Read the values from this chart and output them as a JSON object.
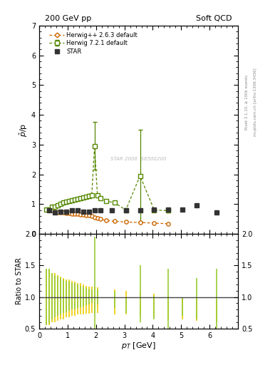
{
  "title_left": "200 GeV pp",
  "title_right": "Soft QCD",
  "ylabel_main": "$\\bar{p}$/p",
  "ylabel_ratio": "Ratio to STAR",
  "xlabel": "$p_T$ [GeV]",
  "watermark": "STAR 2006  S6500200",
  "right_label_top": "Rivet 3.1.10, ≥ 100k events",
  "right_label_bot": "mcplots.cern.ch [arXiv:1306.3436]",
  "ylim_main": [
    0,
    7
  ],
  "ylim_ratio": [
    0.5,
    2.0
  ],
  "xlim": [
    0,
    7
  ],
  "star_x": [
    0.35,
    0.55,
    0.75,
    0.95,
    1.15,
    1.35,
    1.55,
    1.75,
    1.95,
    2.15,
    2.55,
    3.05,
    3.55,
    4.05,
    4.55,
    5.05,
    5.55,
    6.25
  ],
  "star_y": [
    0.78,
    0.72,
    0.75,
    0.75,
    0.78,
    0.78,
    0.75,
    0.75,
    0.78,
    0.78,
    0.78,
    0.78,
    0.8,
    0.82,
    0.82,
    0.82,
    0.95,
    0.72
  ],
  "star_yerr": [
    0.04,
    0.03,
    0.03,
    0.03,
    0.03,
    0.03,
    0.03,
    0.03,
    0.03,
    0.03,
    0.03,
    0.03,
    0.03,
    0.03,
    0.03,
    0.04,
    0.05,
    0.06
  ],
  "herwig263_x": [
    0.25,
    0.35,
    0.45,
    0.55,
    0.65,
    0.75,
    0.85,
    0.95,
    1.05,
    1.15,
    1.25,
    1.35,
    1.45,
    1.55,
    1.65,
    1.75,
    1.85,
    1.95,
    2.05,
    2.15,
    2.35,
    2.65,
    3.05,
    3.55,
    4.05,
    4.55
  ],
  "herwig263_y": [
    0.82,
    0.8,
    0.78,
    0.75,
    0.73,
    0.73,
    0.72,
    0.7,
    0.7,
    0.68,
    0.67,
    0.66,
    0.65,
    0.64,
    0.63,
    0.62,
    0.6,
    0.55,
    0.52,
    0.5,
    0.45,
    0.42,
    0.4,
    0.38,
    0.36,
    0.34
  ],
  "herwig263_yerr": [
    0.02,
    0.02,
    0.02,
    0.02,
    0.02,
    0.02,
    0.02,
    0.02,
    0.02,
    0.02,
    0.02,
    0.02,
    0.02,
    0.02,
    0.02,
    0.02,
    0.02,
    0.02,
    0.02,
    0.02,
    0.02,
    0.02,
    0.02,
    0.02,
    0.02,
    0.02
  ],
  "herwig721_x": [
    0.25,
    0.35,
    0.45,
    0.55,
    0.65,
    0.75,
    0.85,
    0.95,
    1.05,
    1.15,
    1.25,
    1.35,
    1.45,
    1.55,
    1.65,
    1.75,
    1.85,
    1.95,
    2.05,
    2.15,
    2.35,
    2.65,
    3.05,
    3.55,
    4.05,
    4.55
  ],
  "herwig721_y": [
    0.82,
    0.82,
    0.9,
    0.92,
    0.95,
    1.0,
    1.05,
    1.08,
    1.1,
    1.12,
    1.15,
    1.18,
    1.2,
    1.22,
    1.25,
    1.28,
    1.3,
    2.95,
    1.3,
    1.2,
    1.1,
    1.05,
    0.8,
    1.95,
    0.8,
    0.78
  ],
  "herwig721_yerr": [
    0.05,
    0.05,
    0.05,
    0.05,
    0.05,
    0.05,
    0.05,
    0.05,
    0.05,
    0.05,
    0.05,
    0.05,
    0.05,
    0.05,
    0.05,
    0.05,
    0.05,
    0.8,
    0.05,
    0.05,
    0.05,
    0.05,
    0.05,
    1.55,
    0.05,
    0.05
  ],
  "ratio263_x": [
    0.25,
    0.35,
    0.45,
    0.55,
    0.65,
    0.75,
    0.85,
    0.95,
    1.05,
    1.15,
    1.25,
    1.35,
    1.45,
    1.55,
    1.65,
    1.75,
    1.85,
    1.95,
    2.05,
    2.65,
    3.05,
    3.55,
    4.05,
    4.55,
    5.05,
    5.55,
    6.25
  ],
  "ratio263_lo": [
    0.55,
    0.55,
    0.6,
    0.6,
    0.62,
    0.65,
    0.65,
    0.68,
    0.68,
    0.7,
    0.7,
    0.72,
    0.72,
    0.72,
    0.74,
    0.74,
    0.75,
    0.75,
    0.75,
    0.72,
    0.72,
    0.7,
    0.68,
    0.65,
    0.65,
    0.62,
    0.6
  ],
  "ratio263_hi": [
    1.45,
    1.45,
    1.38,
    1.38,
    1.35,
    1.32,
    1.3,
    1.28,
    1.28,
    1.26,
    1.24,
    1.22,
    1.22,
    1.2,
    1.18,
    1.16,
    1.16,
    1.15,
    1.15,
    1.12,
    1.1,
    1.08,
    1.05,
    1.02,
    1.0,
    0.98,
    0.96
  ],
  "ratio721_x": [
    0.25,
    0.35,
    0.45,
    0.55,
    0.65,
    0.75,
    0.85,
    0.95,
    1.05,
    1.15,
    1.25,
    1.35,
    1.45,
    1.55,
    1.65,
    1.75,
    1.85,
    1.95,
    2.05,
    2.65,
    3.05,
    3.55,
    4.05,
    4.55,
    5.05,
    5.55,
    6.25
  ],
  "ratio721_lo": [
    0.55,
    0.58,
    0.65,
    0.68,
    0.7,
    0.72,
    0.75,
    0.76,
    0.78,
    0.8,
    0.8,
    0.82,
    0.84,
    0.85,
    0.87,
    0.88,
    0.9,
    0.5,
    0.88,
    0.82,
    0.75,
    0.6,
    0.65,
    0.48,
    0.7,
    0.65,
    0.48
  ],
  "ratio721_hi": [
    1.45,
    1.45,
    1.38,
    1.35,
    1.32,
    1.3,
    1.28,
    1.26,
    1.24,
    1.22,
    1.22,
    1.2,
    1.18,
    1.16,
    1.14,
    1.12,
    1.12,
    1.95,
    1.12,
    1.08,
    1.0,
    1.5,
    1.02,
    1.45,
    0.98,
    1.3,
    1.45
  ],
  "star_color": "#333333",
  "herwig263_color": "#cc6600",
  "herwig721_color": "#558800",
  "ratio263_color": "#eecc00",
  "ratio721_color": "#99cc33",
  "bg_color": "#ffffff",
  "yticks_main": [
    0,
    1,
    2,
    3,
    4,
    5,
    6,
    7
  ],
  "yticks_ratio": [
    0.5,
    1.0,
    1.5,
    2.0
  ],
  "xticks": [
    0,
    1,
    2,
    3,
    4,
    5,
    6
  ]
}
